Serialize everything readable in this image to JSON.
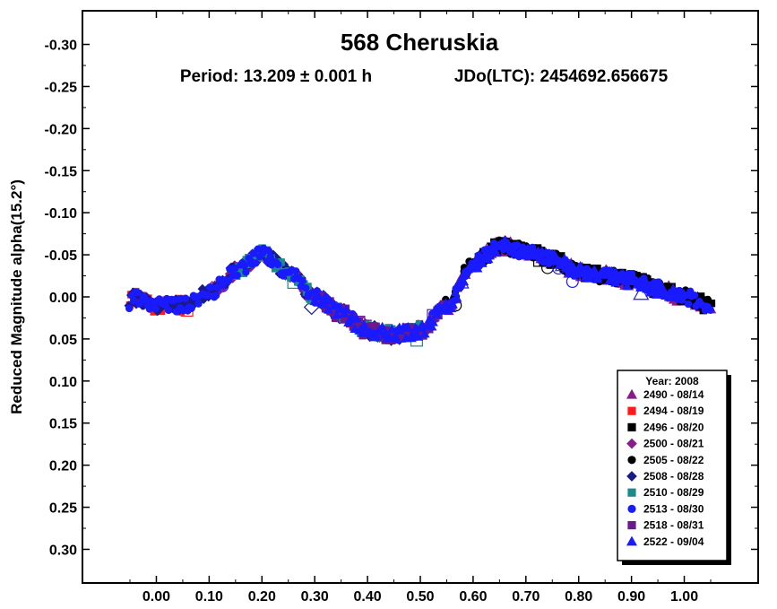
{
  "chart_data": {
    "type": "scatter",
    "title": "568 Cheruskia",
    "subtitle_period": "Period: 13.209 ± 0.001 h",
    "subtitle_epoch": "JDo(LTC): 2454692.656675",
    "xlabel": "",
    "ylabel": "Reduced Magnitude alpha(15.2°)",
    "xlim": [
      -0.14,
      1.14
    ],
    "ylim": [
      -0.34,
      0.34
    ],
    "y_inverted": true,
    "x_ticks": [
      "0.00",
      "0.10",
      "0.20",
      "0.30",
      "0.40",
      "0.50",
      "0.60",
      "0.70",
      "0.80",
      "0.90",
      "1.00"
    ],
    "y_ticks": [
      "-0.30",
      "-0.25",
      "-0.20",
      "-0.15",
      "-0.10",
      "-0.05",
      "0.00",
      "0.05",
      "0.10",
      "0.15",
      "0.20",
      "0.25",
      "0.30"
    ],
    "grid": false,
    "legend_placement": "bottom-right",
    "legend_title": "Year: 2008",
    "lightcurve": {
      "phase": [
        -0.05,
        0.0,
        0.05,
        0.1,
        0.15,
        0.2,
        0.25,
        0.3,
        0.35,
        0.4,
        0.45,
        0.5,
        0.55,
        0.6,
        0.65,
        0.7,
        0.75,
        0.8,
        0.85,
        0.9,
        0.95,
        1.0,
        1.05
      ],
      "mag": [
        0.0,
        0.01,
        0.01,
        -0.005,
        -0.03,
        -0.05,
        -0.03,
        0.0,
        0.02,
        0.04,
        0.045,
        0.04,
        0.01,
        -0.04,
        -0.06,
        -0.055,
        -0.045,
        -0.03,
        -0.025,
        -0.02,
        -0.01,
        0.0,
        0.01
      ]
    },
    "series": [
      {
        "name": "2490 - 08/14",
        "marker": "triangle",
        "color": "#8b1a8b",
        "phase_range": [
          0.55,
          1.05
        ]
      },
      {
        "name": "2494 - 08/19",
        "marker": "square",
        "color": "#ff1a1a",
        "phase_range": [
          -0.05,
          0.06
        ]
      },
      {
        "name": "2496 - 08/20",
        "marker": "square",
        "color": "#000000",
        "phase_range": [
          0.6,
          1.05
        ]
      },
      {
        "name": "2500 - 08/21",
        "marker": "diamond",
        "color": "#8b1a8b",
        "phase_range": [
          0.1,
          0.5
        ]
      },
      {
        "name": "2505 - 08/22",
        "marker": "circle",
        "color": "#000000",
        "phase_range": [
          0.55,
          1.05
        ]
      },
      {
        "name": "2508 - 08/28",
        "marker": "diamond",
        "color": "#1a1a8b",
        "phase_range": [
          -0.05,
          0.5
        ]
      },
      {
        "name": "2510 - 08/29",
        "marker": "square",
        "color": "#1a8b8b",
        "phase_range": [
          0.15,
          0.5
        ]
      },
      {
        "name": "2513 - 08/30",
        "marker": "circle",
        "color": "#1a1aff",
        "phase_range": [
          -0.05,
          1.05
        ]
      },
      {
        "name": "2518 - 08/31",
        "marker": "square",
        "color": "#6b1a8b",
        "phase_range": [
          0.3,
          0.55
        ]
      },
      {
        "name": "2522 - 09/04",
        "marker": "triangle",
        "color": "#1a1aff",
        "phase_range": [
          0.3,
          1.0
        ]
      }
    ]
  }
}
